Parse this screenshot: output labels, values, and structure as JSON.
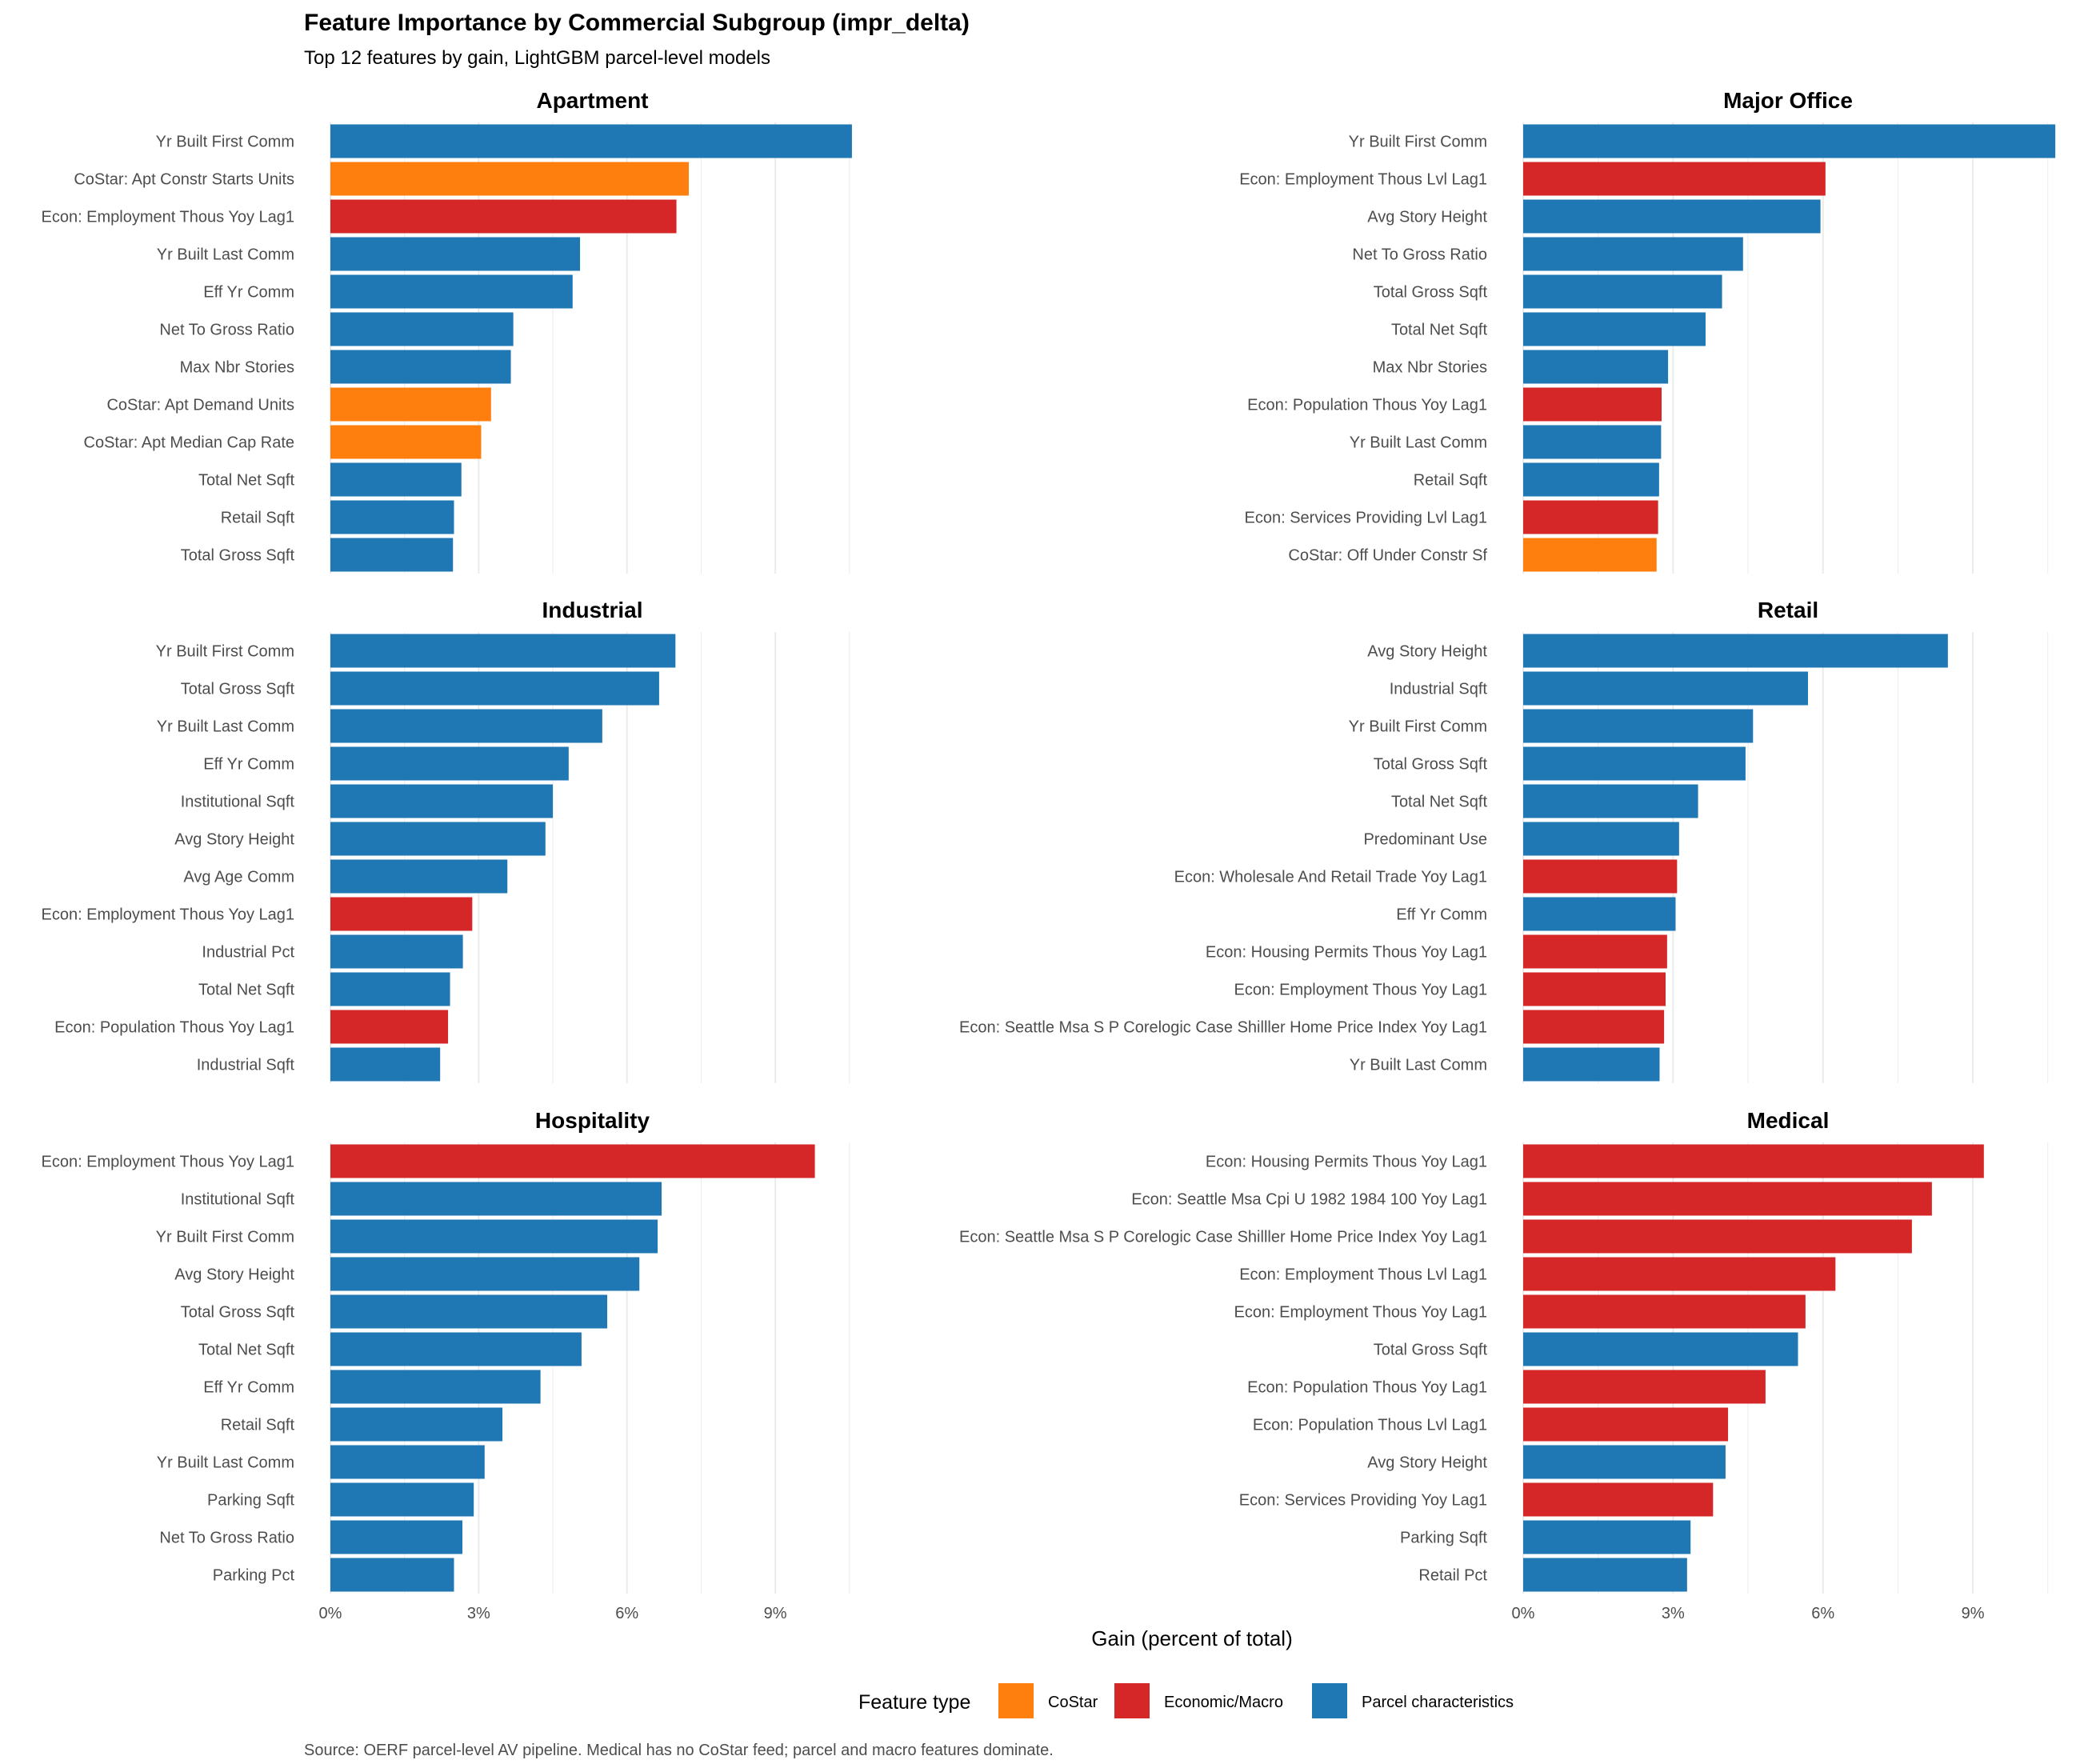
{
  "title": "Feature Importance by Commercial Subgroup (impr_delta)",
  "subtitle": "Top 12 features by gain, LightGBM parcel-level models",
  "caption": "Source: OERF parcel-level AV pipeline. Medical has no CoStar feed; parcel and macro features dominate.",
  "colors": {
    "CoStar": "#ff7f0e",
    "Economic/Macro": "#d62728",
    "Parcel characteristics": "#1f77b4",
    "grid": "#ebebeb",
    "text": "#4d4d4d",
    "title": "#000000"
  },
  "legend": {
    "title": "Feature type",
    "items": [
      "CoStar",
      "Economic/Macro",
      "Parcel characteristics"
    ]
  },
  "chart_data": {
    "type": "bar",
    "orientation": "horizontal",
    "xlabel": "Gain (percent of total)",
    "xlim": [
      0,
      10.6
    ],
    "xticks": [
      0,
      3,
      6,
      9
    ],
    "xtick_labels": [
      "0%",
      "3%",
      "6%",
      "9%"
    ],
    "grid": true,
    "legend_position": "bottom",
    "panels": [
      {
        "name": "Apartment",
        "features": [
          "Yr Built First Comm",
          "CoStar: Apt Constr Starts Units",
          "Econ: Employment Thous Yoy Lag1",
          "Yr Built Last Comm",
          "Eff Yr Comm",
          "Net To Gross Ratio",
          "Max Nbr Stories",
          "CoStar: Apt Demand Units",
          "CoStar: Apt Median Cap Rate",
          "Total Net Sqft",
          "Retail Sqft",
          "Total Gross Sqft"
        ],
        "values": [
          10.55,
          7.25,
          7.0,
          5.05,
          4.9,
          3.7,
          3.65,
          3.25,
          3.05,
          2.65,
          2.5,
          2.48
        ],
        "types": [
          "Parcel characteristics",
          "CoStar",
          "Economic/Macro",
          "Parcel characteristics",
          "Parcel characteristics",
          "Parcel characteristics",
          "Parcel characteristics",
          "CoStar",
          "CoStar",
          "Parcel characteristics",
          "Parcel characteristics",
          "Parcel characteristics"
        ]
      },
      {
        "name": "Major Office",
        "features": [
          "Yr Built First Comm",
          "Econ: Employment Thous Lvl Lag1",
          "Avg Story Height",
          "Net To Gross Ratio",
          "Total Gross Sqft",
          "Total Net Sqft",
          "Max Nbr Stories",
          "Econ: Population Thous Yoy Lag1",
          "Yr Built Last Comm",
          "Retail Sqft",
          "Econ: Services Providing Lvl Lag1",
          "CoStar: Off Under Constr Sf"
        ],
        "values": [
          10.65,
          6.05,
          5.95,
          4.4,
          3.98,
          3.65,
          2.9,
          2.77,
          2.76,
          2.72,
          2.7,
          2.67
        ],
        "types": [
          "Parcel characteristics",
          "Economic/Macro",
          "Parcel characteristics",
          "Parcel characteristics",
          "Parcel characteristics",
          "Parcel characteristics",
          "Parcel characteristics",
          "Economic/Macro",
          "Parcel characteristics",
          "Parcel characteristics",
          "Economic/Macro",
          "CoStar"
        ]
      },
      {
        "name": "Industrial",
        "features": [
          "Yr Built First Comm",
          "Total Gross Sqft",
          "Yr Built Last Comm",
          "Eff Yr Comm",
          "Institutional Sqft",
          "Avg Story Height",
          "Avg Age Comm",
          "Econ: Employment Thous Yoy Lag1",
          "Industrial Pct",
          "Total Net Sqft",
          "Econ: Population Thous Yoy Lag1",
          "Industrial Sqft"
        ],
        "values": [
          6.98,
          6.65,
          5.5,
          4.82,
          4.5,
          4.35,
          3.58,
          2.87,
          2.68,
          2.42,
          2.38,
          2.22
        ],
        "types": [
          "Parcel characteristics",
          "Parcel characteristics",
          "Parcel characteristics",
          "Parcel characteristics",
          "Parcel characteristics",
          "Parcel characteristics",
          "Parcel characteristics",
          "Economic/Macro",
          "Parcel characteristics",
          "Parcel characteristics",
          "Economic/Macro",
          "Parcel characteristics"
        ]
      },
      {
        "name": "Retail",
        "features": [
          "Avg Story Height",
          "Industrial Sqft",
          "Yr Built First Comm",
          "Total Gross Sqft",
          "Total Net Sqft",
          "Predominant Use",
          "Econ: Wholesale And Retail Trade Yoy Lag1",
          "Eff Yr Comm",
          "Econ: Housing Permits Thous Yoy Lag1",
          "Econ: Employment Thous Yoy Lag1",
          "Econ: Seattle Msa S P Corelogic Case Shilller Home Price Index Yoy Lag1",
          "Yr Built Last Comm"
        ],
        "values": [
          8.5,
          5.7,
          4.6,
          4.45,
          3.5,
          3.12,
          3.08,
          3.05,
          2.88,
          2.85,
          2.82,
          2.73
        ],
        "types": [
          "Parcel characteristics",
          "Parcel characteristics",
          "Parcel characteristics",
          "Parcel characteristics",
          "Parcel characteristics",
          "Parcel characteristics",
          "Economic/Macro",
          "Parcel characteristics",
          "Economic/Macro",
          "Economic/Macro",
          "Economic/Macro",
          "Parcel characteristics"
        ]
      },
      {
        "name": "Hospitality",
        "features": [
          "Econ: Employment Thous Yoy Lag1",
          "Institutional Sqft",
          "Yr Built First Comm",
          "Avg Story Height",
          "Total Gross Sqft",
          "Total Net Sqft",
          "Eff Yr Comm",
          "Retail Sqft",
          "Yr Built Last Comm",
          "Parking Sqft",
          "Net To Gross Ratio",
          "Parking Pct"
        ],
        "values": [
          9.8,
          6.7,
          6.62,
          6.25,
          5.6,
          5.08,
          4.25,
          3.48,
          3.12,
          2.9,
          2.67,
          2.5
        ],
        "types": [
          "Economic/Macro",
          "Parcel characteristics",
          "Parcel characteristics",
          "Parcel characteristics",
          "Parcel characteristics",
          "Parcel characteristics",
          "Parcel characteristics",
          "Parcel characteristics",
          "Parcel characteristics",
          "Parcel characteristics",
          "Parcel characteristics",
          "Parcel characteristics"
        ]
      },
      {
        "name": "Medical",
        "features": [
          "Econ: Housing Permits Thous Yoy Lag1",
          "Econ: Seattle Msa Cpi U 1982 1984 100 Yoy Lag1",
          "Econ: Seattle Msa S P Corelogic Case Shilller Home Price Index Yoy Lag1",
          "Econ: Employment Thous Lvl Lag1",
          "Econ: Employment Thous Yoy Lag1",
          "Total Gross Sqft",
          "Econ: Population Thous Yoy Lag1",
          "Econ: Population Thous Lvl Lag1",
          "Avg Story Height",
          "Econ: Services Providing Yoy Lag1",
          "Parking Sqft",
          "Retail Pct"
        ],
        "values": [
          9.22,
          8.18,
          7.78,
          6.25,
          5.65,
          5.5,
          4.85,
          4.1,
          4.05,
          3.8,
          3.35,
          3.28
        ],
        "types": [
          "Economic/Macro",
          "Economic/Macro",
          "Economic/Macro",
          "Economic/Macro",
          "Economic/Macro",
          "Parcel characteristics",
          "Economic/Macro",
          "Economic/Macro",
          "Parcel characteristics",
          "Economic/Macro",
          "Parcel characteristics",
          "Parcel characteristics"
        ]
      }
    ]
  }
}
